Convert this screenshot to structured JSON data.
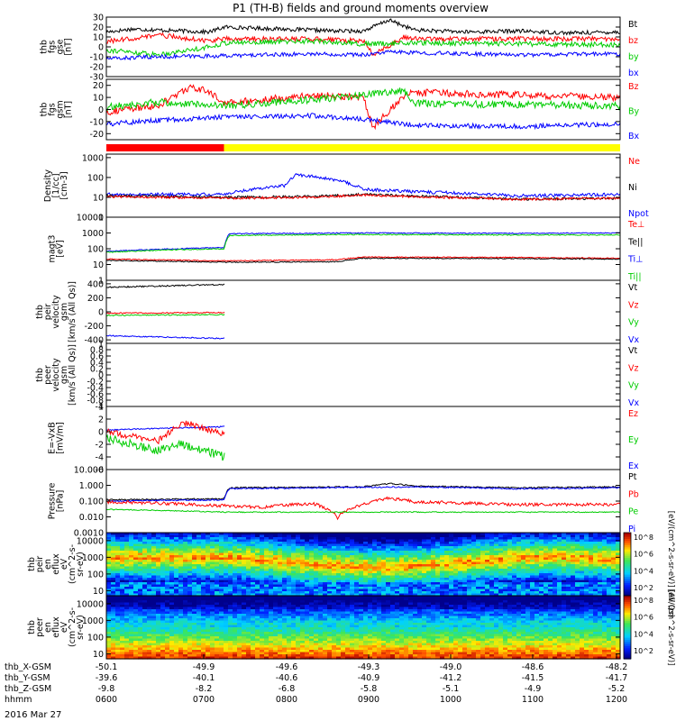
{
  "chart_data": {
    "type": "line",
    "title": "P1 (TH-B) fields and ground moments overview",
    "date_label": "2016 Mar 27",
    "panels": [
      {
        "id": "fgs_gse",
        "ylabel": [
          "thb",
          "fgs",
          "gse",
          "[nT]"
        ],
        "ylim": [
          -30,
          30
        ],
        "ticks": [
          -30,
          -20,
          -10,
          0,
          10,
          20,
          30
        ],
        "legend": [
          {
            "name": "Bt",
            "color": "#000000"
          },
          {
            "name": "bz",
            "color": "#ff0000"
          },
          {
            "name": "by",
            "color": "#00cc00"
          },
          {
            "name": "bx",
            "color": "#0000ff"
          }
        ],
        "series": [
          {
            "name": "Bt",
            "color": "#000000",
            "noise": 2.0,
            "x": [
              0,
              0.05,
              0.2,
              0.23,
              0.45,
              0.5,
              0.55,
              0.6,
              0.7,
              0.8,
              0.9,
              1
            ],
            "y": [
              15,
              18,
              15,
              20,
              16,
              16,
              27,
              17,
              15,
              16,
              14,
              15
            ]
          },
          {
            "name": "bz",
            "color": "#ff0000",
            "noise": 2.5,
            "x": [
              0,
              0.1,
              0.2,
              0.23,
              0.4,
              0.5,
              0.52,
              0.58,
              0.6,
              0.8,
              1
            ],
            "y": [
              5,
              12,
              6,
              8,
              8,
              6,
              -8,
              10,
              8,
              8,
              8
            ]
          },
          {
            "name": "by",
            "color": "#00cc00",
            "noise": 2.5,
            "x": [
              0,
              0.1,
              0.2,
              0.23,
              0.4,
              0.5,
              0.6,
              0.8,
              1
            ],
            "y": [
              -3,
              -8,
              0,
              4,
              6,
              3,
              4,
              3,
              2
            ]
          },
          {
            "name": "bx",
            "color": "#0000ff",
            "noise": 2.0,
            "x": [
              0,
              0.1,
              0.23,
              0.4,
              0.5,
              0.55,
              0.6,
              0.8,
              1
            ],
            "y": [
              -12,
              -10,
              -9,
              -7,
              -8,
              -5,
              -6,
              -8,
              -7
            ]
          }
        ]
      },
      {
        "id": "fgs_gsm",
        "ylabel": [
          "thb",
          "fgs",
          "gsm",
          "[nT]"
        ],
        "ylim": [
          -25,
          25
        ],
        "ticks": [
          -20,
          -10,
          0,
          10,
          20
        ],
        "legend": [
          {
            "name": "Bz",
            "color": "#ff0000"
          },
          {
            "name": "By",
            "color": "#00cc00"
          },
          {
            "name": "Bx",
            "color": "#0000ff"
          }
        ],
        "series": [
          {
            "name": "Bz",
            "color": "#ff0000",
            "noise": 3.0,
            "x": [
              0,
              0.1,
              0.16,
              0.2,
              0.23,
              0.4,
              0.5,
              0.52,
              0.58,
              0.6,
              0.8,
              1
            ],
            "y": [
              -2,
              3,
              18,
              15,
              5,
              12,
              10,
              -15,
              12,
              14,
              12,
              10
            ]
          },
          {
            "name": "By",
            "color": "#00cc00",
            "noise": 3.0,
            "x": [
              0,
              0.1,
              0.2,
              0.23,
              0.4,
              0.5,
              0.58,
              0.6,
              0.8,
              1
            ],
            "y": [
              2,
              6,
              4,
              3,
              8,
              12,
              16,
              5,
              4,
              3
            ]
          },
          {
            "name": "Bx",
            "color": "#0000ff",
            "noise": 2.0,
            "x": [
              0,
              0.1,
              0.23,
              0.4,
              0.5,
              0.6,
              0.8,
              1
            ],
            "y": [
              -12,
              -9,
              -6,
              -5,
              -8,
              -13,
              -14,
              -12
            ]
          }
        ]
      },
      {
        "id": "density",
        "ylabel": [
          "Density",
          "[1/cc]",
          "[cm-3]"
        ],
        "log": true,
        "ylim": [
          1,
          1500
        ],
        "ticks": [
          1,
          10,
          100,
          1000
        ],
        "legend": [
          {
            "name": "Ne",
            "color": "#ff0000"
          },
          {
            "name": "Ni",
            "color": "#000000"
          },
          {
            "name": "Npot",
            "color": "#0000ff"
          }
        ],
        "series": [
          {
            "name": "Npot",
            "color": "#0000ff",
            "noise": 0.08,
            "x": [
              0,
              0.23,
              0.35,
              0.37,
              0.5,
              0.58,
              0.8,
              1
            ],
            "y": [
              14,
              14,
              40,
              140,
              25,
              20,
              12,
              14
            ]
          },
          {
            "name": "Ni",
            "color": "#000000",
            "noise": 0.06,
            "x": [
              0,
              0.23,
              0.4,
              0.5,
              0.58,
              0.8,
              1
            ],
            "y": [
              12,
              10,
              11,
              14,
              12,
              8,
              9
            ]
          },
          {
            "name": "Ne",
            "color": "#ff0000",
            "noise": 0.06,
            "x": [
              0,
              0.23,
              0.4,
              0.5,
              0.58,
              0.8,
              1
            ],
            "y": [
              11,
              9,
              10,
              13,
              11,
              8,
              9
            ]
          }
        ]
      },
      {
        "id": "magt3",
        "ylabel": [
          "magt3",
          "[eV]"
        ],
        "log": true,
        "ylim": [
          1,
          10000
        ],
        "ticks": [
          1,
          10,
          100,
          1000,
          10000
        ],
        "legend": [
          {
            "name": "Te⊥",
            "color": "#ff0000"
          },
          {
            "name": "Te||",
            "color": "#000000"
          },
          {
            "name": "Ti⊥",
            "color": "#0000ff"
          },
          {
            "name": "Ti||",
            "color": "#00cc00"
          }
        ],
        "series": [
          {
            "name": "Ti⊥",
            "color": "#0000ff",
            "noise": 0.03,
            "x": [
              0,
              0.1,
              0.23,
              0.24,
              0.5,
              0.8,
              1
            ],
            "y": [
              70,
              90,
              120,
              900,
              1000,
              950,
              1000
            ]
          },
          {
            "name": "Ti||",
            "color": "#00cc00",
            "noise": 0.03,
            "x": [
              0,
              0.1,
              0.23,
              0.24,
              0.5,
              0.8,
              1
            ],
            "y": [
              60,
              80,
              100,
              700,
              800,
              750,
              750
            ]
          },
          {
            "name": "Te⊥",
            "color": "#ff0000",
            "noise": 0.03,
            "x": [
              0,
              0.23,
              0.45,
              0.5,
              0.8,
              1
            ],
            "y": [
              22,
              17,
              20,
              30,
              28,
              25
            ]
          },
          {
            "name": "Te||",
            "color": "#000000",
            "noise": 0.03,
            "x": [
              0,
              0.23,
              0.45,
              0.5,
              0.8,
              1
            ],
            "y": [
              18,
              14,
              15,
              25,
              24,
              22
            ]
          }
        ]
      },
      {
        "id": "peir_velocity",
        "ylabel": [
          "thb",
          "peir",
          "velocity",
          "gsm",
          "[km/s (All Qs)]"
        ],
        "ylim": [
          -450,
          450
        ],
        "ticks": [
          -400,
          -200,
          0,
          200,
          400
        ],
        "legend": [
          {
            "name": "Vt",
            "color": "#000000"
          },
          {
            "name": "Vz",
            "color": "#ff0000"
          },
          {
            "name": "Vy",
            "color": "#00cc00"
          },
          {
            "name": "Vx",
            "color": "#0000ff"
          }
        ],
        "series": [
          {
            "name": "Vt",
            "color": "#000000",
            "noise": 10,
            "x": [
              0,
              0.23
            ],
            "y": [
              350,
              390
            ]
          },
          {
            "name": "Vz",
            "color": "#ff0000",
            "noise": 8,
            "x": [
              0,
              0.23
            ],
            "y": [
              -20,
              -10
            ]
          },
          {
            "name": "Vy",
            "color": "#00cc00",
            "noise": 8,
            "x": [
              0,
              0.23
            ],
            "y": [
              -50,
              -40
            ]
          },
          {
            "name": "Vx",
            "color": "#0000ff",
            "noise": 8,
            "x": [
              0,
              0.23
            ],
            "y": [
              -340,
              -380
            ]
          }
        ]
      },
      {
        "id": "peer_velocity",
        "ylabel": [
          "thb",
          "peer",
          "velocity",
          "gsm",
          "[km/s (All Qs)]"
        ],
        "ylim": [
          -1,
          1
        ],
        "ticks": [
          -1.0,
          -0.8,
          -0.6,
          -0.4,
          -0.2,
          0.0,
          0.2,
          0.4,
          0.6,
          0.8,
          1.0
        ],
        "legend": [
          {
            "name": "Vt",
            "color": "#000000"
          },
          {
            "name": "Vz",
            "color": "#ff0000"
          },
          {
            "name": "Vy",
            "color": "#00cc00"
          },
          {
            "name": "Vx",
            "color": "#0000ff"
          }
        ],
        "series": []
      },
      {
        "id": "e_field",
        "ylabel": [
          "E=-VxB",
          "[mV/m]"
        ],
        "ylim": [
          -6,
          4
        ],
        "ticks": [
          -6,
          -4,
          -2,
          0,
          2,
          4
        ],
        "legend": [
          {
            "name": "Ez",
            "color": "#ff0000"
          },
          {
            "name": "Ey",
            "color": "#00cc00"
          },
          {
            "name": "Ex",
            "color": "#0000ff"
          }
        ],
        "series": [
          {
            "name": "Ex",
            "color": "#0000ff",
            "noise": 0.1,
            "x": [
              0,
              0.23
            ],
            "y": [
              0.3,
              0.8
            ]
          },
          {
            "name": "Ez",
            "color": "#ff0000",
            "noise": 0.5,
            "x": [
              0,
              0.1,
              0.15,
              0.23
            ],
            "y": [
              0,
              -1.5,
              1.5,
              -0.5
            ]
          },
          {
            "name": "Ey",
            "color": "#00cc00",
            "noise": 0.7,
            "x": [
              0,
              0.1,
              0.15,
              0.23
            ],
            "y": [
              -1,
              -3,
              -2,
              -4
            ]
          }
        ]
      },
      {
        "id": "pressure",
        "ylabel": [
          "Pressure",
          "[nPa]"
        ],
        "log": true,
        "ylim": [
          0.001,
          10
        ],
        "ticks": [
          0.001,
          0.01,
          0.1,
          1,
          10
        ],
        "tick_labels": [
          "0.0010",
          "0.010",
          "0.100",
          "1.000",
          "10.000"
        ],
        "legend": [
          {
            "name": "Pt",
            "color": "#000000"
          },
          {
            "name": "Pb",
            "color": "#ff0000"
          },
          {
            "name": "Pe",
            "color": "#00cc00"
          },
          {
            "name": "Pi",
            "color": "#0000ff"
          }
        ],
        "series": [
          {
            "name": "Pt",
            "color": "#000000",
            "noise": 0.04,
            "x": [
              0,
              0.23,
              0.24,
              0.5,
              0.55,
              0.6,
              0.8,
              1
            ],
            "y": [
              0.12,
              0.14,
              0.7,
              0.8,
              1.3,
              0.9,
              0.7,
              0.8
            ]
          },
          {
            "name": "Pi",
            "color": "#0000ff",
            "noise": 0.04,
            "x": [
              0,
              0.23,
              0.24,
              0.5,
              0.6,
              0.8,
              1
            ],
            "y": [
              0.1,
              0.12,
              0.6,
              0.75,
              0.8,
              0.6,
              0.7
            ]
          },
          {
            "name": "Pb",
            "color": "#ff0000",
            "noise": 0.1,
            "x": [
              0,
              0.23,
              0.3,
              0.4,
              0.45,
              0.5,
              0.55,
              0.6,
              0.8,
              1
            ],
            "y": [
              0.09,
              0.05,
              0.04,
              0.07,
              0.008,
              0.06,
              0.15,
              0.09,
              0.06,
              0.06
            ]
          },
          {
            "name": "Pe",
            "color": "#00cc00",
            "noise": 0.03,
            "x": [
              0,
              0.23,
              0.5,
              0.8,
              1
            ],
            "y": [
              0.03,
              0.02,
              0.02,
              0.02,
              0.02
            ]
          }
        ]
      },
      {
        "id": "peir_en_eflux",
        "type": "heatmap",
        "ylabel": [
          "thb",
          "peir",
          "en",
          "eflux",
          "eV",
          "(cm^2-s-",
          "sr-eV)"
        ],
        "log": true,
        "ylim": [
          5,
          30000
        ],
        "ticks": [
          10,
          100,
          1000,
          10000
        ],
        "colorbar": {
          "label": "[eV/(cm^2-s-sr-eV)] (All Qs)",
          "ticks": [
            "10^8",
            "10^6",
            "10^4",
            "10^2"
          ]
        }
      },
      {
        "id": "peer_en_eflux",
        "type": "heatmap",
        "ylabel": [
          "thb",
          "peer",
          "en",
          "eflux",
          "eV",
          "(cm^2-s-",
          "sr-eV)"
        ],
        "log": true,
        "ylim": [
          5,
          30000
        ],
        "ticks": [
          10,
          100,
          1000,
          10000
        ],
        "colorbar": {
          "label": "[eV/(cm^2-s-sr-eV)]",
          "ticks": [
            "10^8",
            "10^6",
            "10^4",
            "10^2"
          ]
        }
      }
    ],
    "x_axis": {
      "rows": [
        {
          "label": "thb_X-GSM",
          "values": [
            "-50.1",
            "-49.9",
            "-49.6",
            "-49.3",
            "-49.0",
            "-48.6",
            "-48.2"
          ]
        },
        {
          "label": "thb_Y-GSM",
          "values": [
            "-39.6",
            "-40.1",
            "-40.6",
            "-40.9",
            "-41.2",
            "-41.5",
            "-41.7"
          ]
        },
        {
          "label": "thb_Z-GSM",
          "values": [
            "-9.8",
            "-8.2",
            "-6.8",
            "-5.8",
            "-5.1",
            "-4.9",
            "-5.2"
          ]
        },
        {
          "label": "hhmm",
          "values": [
            "0600",
            "0700",
            "0800",
            "0900",
            "1000",
            "1100",
            "1200"
          ]
        }
      ]
    },
    "mode_bar": {
      "segments": [
        {
          "from": 0.0,
          "to": 0.229,
          "color": "#ff0000"
        },
        {
          "from": 0.229,
          "to": 1.0,
          "color": "#ffff00"
        }
      ]
    }
  }
}
